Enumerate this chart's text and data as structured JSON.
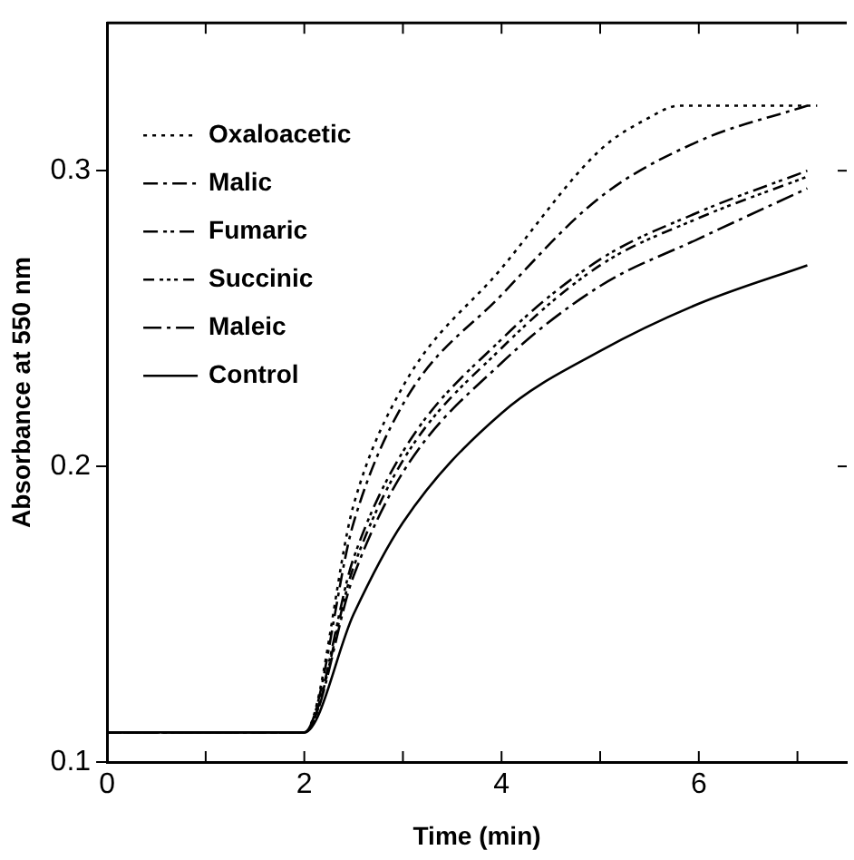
{
  "chart_data": {
    "type": "line",
    "xlabel": "Time (min)",
    "ylabel": "Absorbance at 550 nm",
    "xlim": [
      0,
      7.5
    ],
    "xticks": [
      0,
      {
        "value": 1,
        "label": null
      },
      2,
      {
        "value": 3,
        "label": null
      },
      4,
      {
        "value": 5,
        "label": null
      },
      6,
      {
        "value": 7,
        "label": null
      }
    ],
    "ylim": [
      0.1,
      0.35
    ],
    "yticks": [
      0.1,
      0.2,
      0.3
    ],
    "grid": false,
    "legend": "top left",
    "marker": "none",
    "series": [
      {
        "name": "Oxaloacetic",
        "color": "#000000",
        "line_style": "dotted",
        "x": [
          0,
          2,
          2.5,
          3,
          4,
          5,
          5.5,
          5.8,
          7.2
        ],
        "values": [
          0.11,
          0.11,
          0.187,
          0.227,
          0.267,
          0.307,
          0.318,
          0.322,
          0.322
        ]
      },
      {
        "name": "Malic",
        "color": "#000000",
        "line_style": "dashed",
        "x": [
          0,
          2,
          2.5,
          3,
          4,
          5,
          6,
          7.1
        ],
        "values": [
          0.11,
          0.11,
          0.181,
          0.221,
          0.258,
          0.291,
          0.31,
          0.322
        ]
      },
      {
        "name": "Fumaric",
        "color": "#000000",
        "line_style": "dashed",
        "x": [
          0,
          2,
          2.5,
          3,
          4,
          5,
          6,
          7.1
        ],
        "values": [
          0.11,
          0.11,
          0.169,
          0.205,
          0.243,
          0.27,
          0.286,
          0.3
        ]
      },
      {
        "name": "Succinic",
        "color": "#000000",
        "line_style": "dashed",
        "x": [
          0,
          2,
          2.5,
          3,
          4,
          5,
          6,
          7.1
        ],
        "values": [
          0.11,
          0.11,
          0.166,
          0.202,
          0.24,
          0.268,
          0.284,
          0.298
        ]
      },
      {
        "name": "Maleic",
        "color": "#000000",
        "line_style": "dashed",
        "x": [
          0,
          2,
          2.5,
          3,
          4,
          5,
          6,
          7.1
        ],
        "values": [
          0.11,
          0.11,
          0.163,
          0.198,
          0.235,
          0.261,
          0.277,
          0.294
        ]
      },
      {
        "name": "Control",
        "color": "#000000",
        "line_style": "solid",
        "x": [
          0,
          2,
          2.5,
          3,
          4,
          5,
          6,
          7.1
        ],
        "values": [
          0.11,
          0.11,
          0.15,
          0.181,
          0.218,
          0.239,
          0.255,
          0.268
        ]
      }
    ]
  }
}
